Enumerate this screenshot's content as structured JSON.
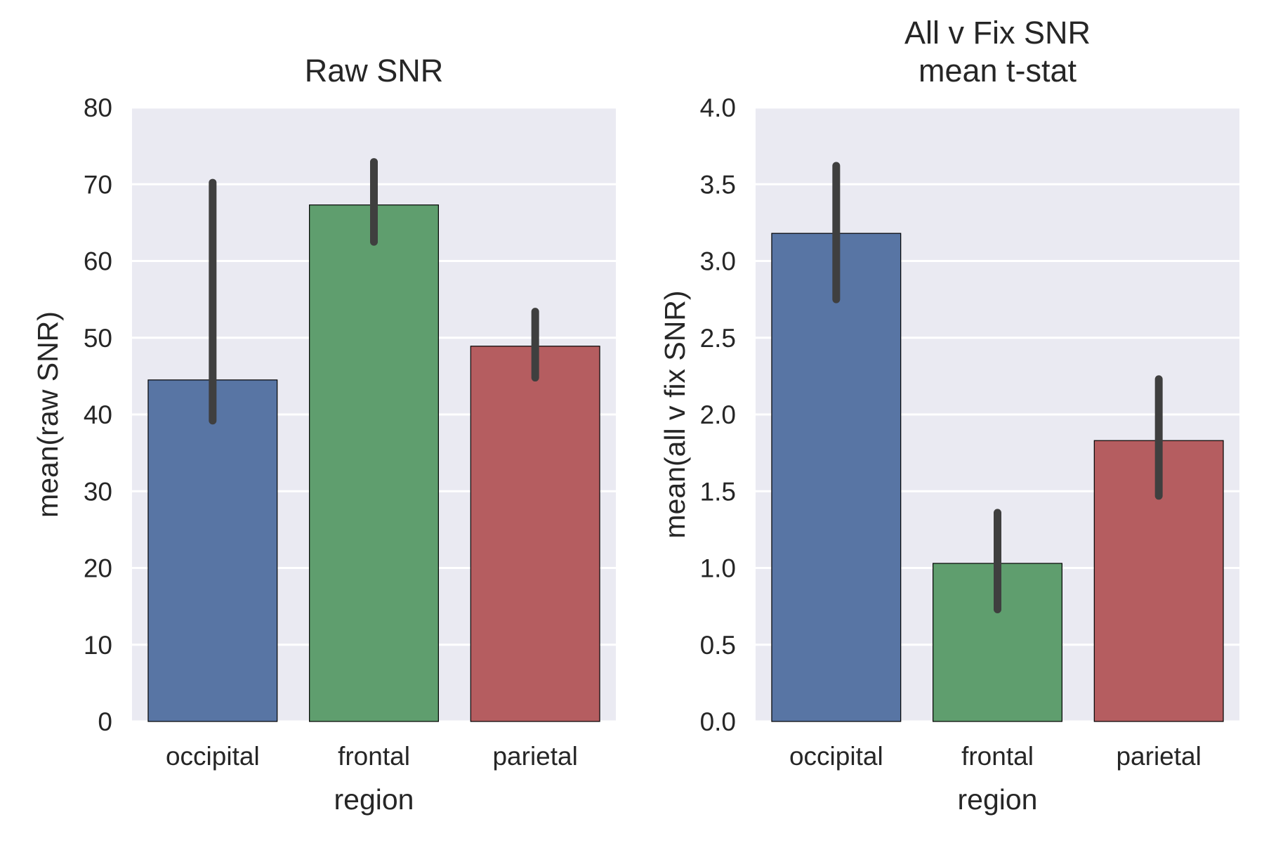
{
  "chart_data": [
    {
      "type": "bar",
      "title": [
        "Raw SNR"
      ],
      "xlabel": "region",
      "ylabel": "mean(raw SNR)",
      "categories": [
        "occipital",
        "frontal",
        "parietal"
      ],
      "values": [
        44.5,
        67.3,
        48.9
      ],
      "error_low": [
        39.2,
        62.5,
        44.8
      ],
      "error_high": [
        70.2,
        72.9,
        53.4
      ],
      "ylim": [
        0,
        80
      ],
      "yticks": [
        0,
        10,
        20,
        30,
        40,
        50,
        60,
        70,
        80
      ],
      "ytick_labels": [
        "0",
        "10",
        "20",
        "30",
        "40",
        "50",
        "60",
        "70",
        "80"
      ],
      "colors": [
        "#5875A4",
        "#5F9E6E",
        "#B55D60"
      ],
      "grid": true
    },
    {
      "type": "bar",
      "title": [
        "All v Fix SNR",
        "mean t-stat"
      ],
      "xlabel": "region",
      "ylabel": "mean(all v fix SNR)",
      "categories": [
        "occipital",
        "frontal",
        "parietal"
      ],
      "values": [
        3.18,
        1.03,
        1.83
      ],
      "error_low": [
        2.75,
        0.73,
        1.47
      ],
      "error_high": [
        3.62,
        1.36,
        2.23
      ],
      "ylim": [
        0,
        4
      ],
      "yticks": [
        0,
        0.5,
        1,
        1.5,
        2,
        2.5,
        3,
        3.5,
        4
      ],
      "ytick_labels": [
        "0.0",
        "0.5",
        "1.0",
        "1.5",
        "2.0",
        "2.5",
        "3.0",
        "3.5",
        "4.0"
      ],
      "colors": [
        "#5875A4",
        "#5F9E6E",
        "#B55D60"
      ],
      "grid": true
    }
  ]
}
